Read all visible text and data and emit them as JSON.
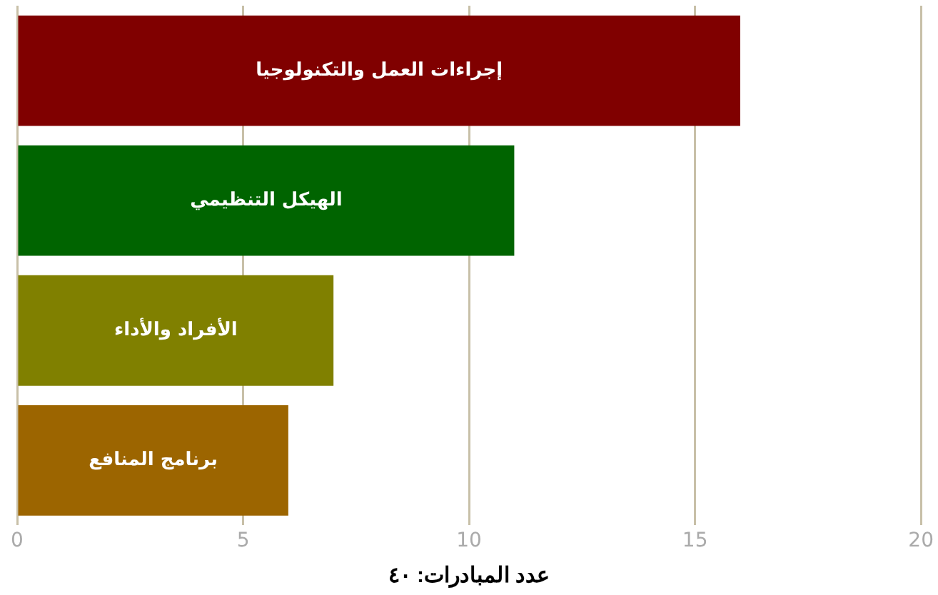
{
  "chart_data": {
    "type": "bar",
    "orientation": "horizontal",
    "xlabel": "عدد المبادرات: ٤٠",
    "categories": [
      "إجراءات العمل والتكنولوجيا",
      "الهيكل التنظيمي",
      "الأفراد والأداء",
      "برنامج المنافع"
    ],
    "values": [
      16,
      11,
      7,
      6
    ],
    "colors": [
      "#800000",
      "#006400",
      "#808000",
      "#9c6500"
    ],
    "xlim": [
      0,
      20
    ],
    "xticks": [
      0,
      5,
      10,
      15,
      20
    ],
    "grid": "x"
  }
}
